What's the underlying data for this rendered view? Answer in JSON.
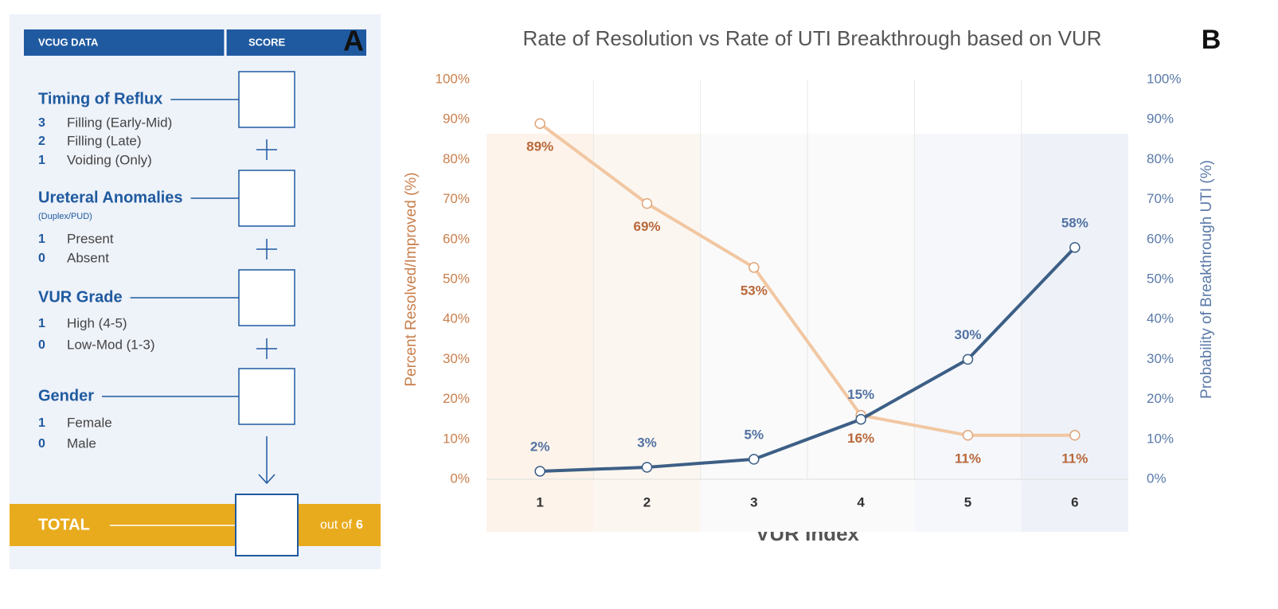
{
  "panel_a": {
    "label": "A",
    "header": {
      "left": "VCUG DATA",
      "right": "SCORE"
    },
    "sections": [
      {
        "title": "Timing of Reflux",
        "items": [
          {
            "score": 3,
            "label": "Filling (Early-Mid)"
          },
          {
            "score": 2,
            "label": "Filling (Late)"
          },
          {
            "score": 1,
            "label": "Voiding (Only)"
          }
        ]
      },
      {
        "title": "Ureteral Anomalies",
        "subtitle": "(Duplex/PUD)",
        "items": [
          {
            "score": 1,
            "label": "Present"
          },
          {
            "score": 0,
            "label": "Absent"
          }
        ]
      },
      {
        "title": "VUR Grade",
        "items": [
          {
            "score": 1,
            "label": "High (4-5)"
          },
          {
            "score": 0,
            "label": "Low-Mod (1-3)"
          }
        ]
      },
      {
        "title": "Gender",
        "items": [
          {
            "score": 1,
            "label": "Female"
          },
          {
            "score": 0,
            "label": "Male"
          }
        ]
      }
    ],
    "total": {
      "label": "TOTAL",
      "suffix": "out of",
      "max": 6
    }
  },
  "chart_data": {
    "type": "line",
    "title": "Rate of Resolution vs Rate of UTI Breakthrough based on VUR",
    "label": "B",
    "x_label": "VUR Index",
    "y_label": "Percent Resolved/Improved (%)",
    "y2_label": "Probability of Breakthrough UTI (%)",
    "categories": [
      "1",
      "2",
      "3",
      "4",
      "5",
      "6"
    ],
    "series": [
      {
        "color": "#f1c7a2",
        "label_color": "#b8683a",
        "values": [
          89,
          69,
          53,
          16,
          11,
          11
        ],
        "value_labels": [
          "89%",
          "69%",
          "53%",
          "16%",
          "11%",
          "11%"
        ]
      },
      {
        "color": "#3d5f86",
        "label_color": "#5272a2",
        "axis": "y2",
        "values": [
          2,
          3,
          5,
          15,
          30,
          58
        ],
        "value_labels": [
          "2%",
          "3%",
          "5%",
          "15%",
          "30%",
          "58%"
        ]
      }
    ],
    "ylim": [
      0,
      100
    ],
    "yticks": [
      {
        "value": 0,
        "label": "0%"
      },
      {
        "value": 10,
        "label": "10%"
      },
      {
        "value": 20,
        "label": "20%"
      },
      {
        "value": 30,
        "label": "30%"
      },
      {
        "value": 40,
        "label": "40%"
      },
      {
        "value": 50,
        "label": "50%"
      },
      {
        "value": 60,
        "label": "60%"
      },
      {
        "value": 70,
        "label": "70%"
      },
      {
        "value": 80,
        "label": "80%"
      },
      {
        "value": 90,
        "label": "90%"
      },
      {
        "value": 100,
        "label": "100%"
      }
    ],
    "y2lim": [
      0,
      100
    ],
    "y2ticks": [
      {
        "value": 0,
        "label": "0%"
      },
      {
        "value": 10,
        "label": "10%"
      },
      {
        "value": 20,
        "label": "20%"
      },
      {
        "value": 30,
        "label": "30%"
      },
      {
        "value": 40,
        "label": "40%"
      },
      {
        "value": 50,
        "label": "50%"
      },
      {
        "value": 60,
        "label": "60%"
      },
      {
        "value": 70,
        "label": "70%"
      },
      {
        "value": 80,
        "label": "80%"
      },
      {
        "value": 90,
        "label": "90%"
      },
      {
        "value": 100,
        "label": "100%"
      }
    ],
    "grid": false
  }
}
